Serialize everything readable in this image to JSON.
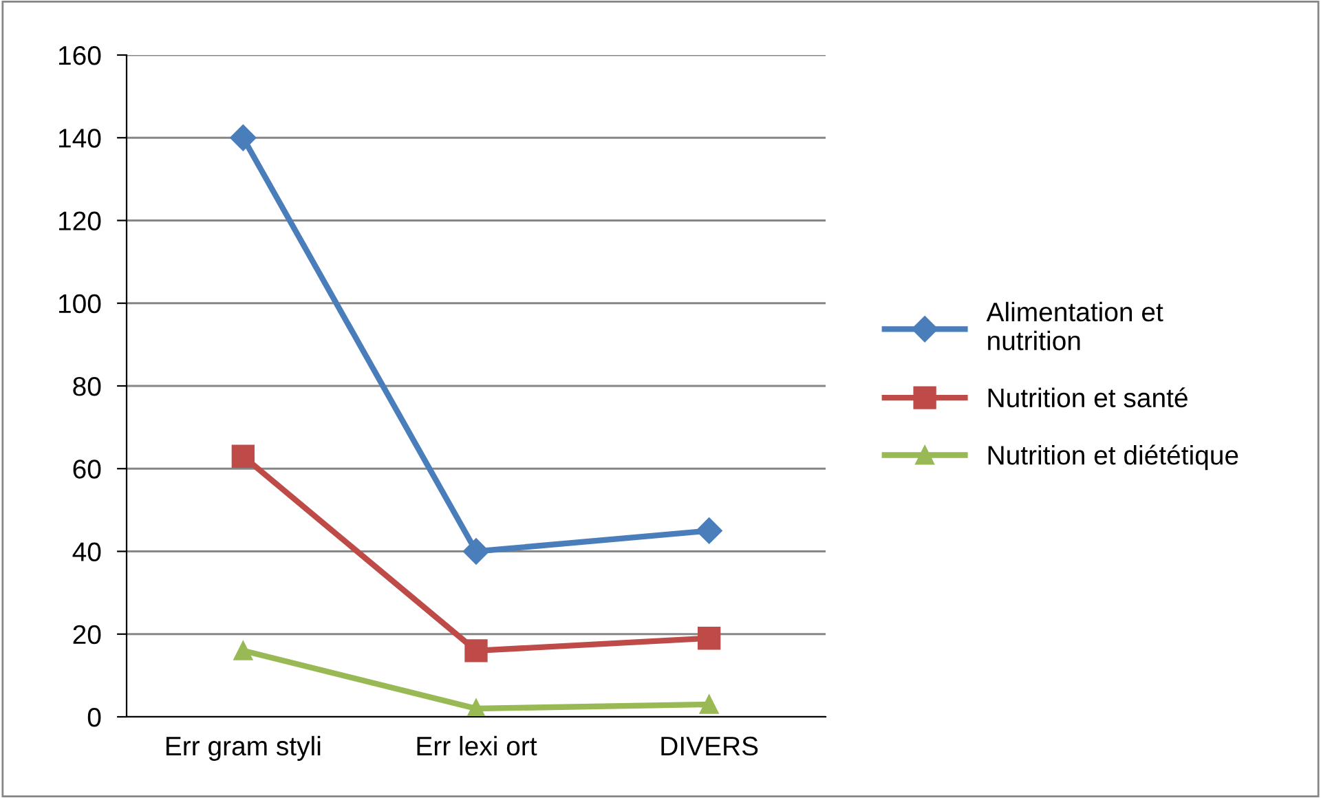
{
  "chart_data": {
    "type": "line",
    "categories": [
      "Err gram styli",
      "Err lexi ort",
      "DIVERS"
    ],
    "series": [
      {
        "name": "Alimentation et\nnutrition",
        "color": "#4a7ebb",
        "values": [
          140,
          40,
          45
        ],
        "marker": "diamond"
      },
      {
        "name": "Nutrition et santé",
        "color": "#be4b48",
        "values": [
          63,
          16,
          19
        ],
        "marker": "square"
      },
      {
        "name": "Nutrition et diététique",
        "color": "#98b954",
        "values": [
          16,
          2,
          3
        ],
        "marker": "triangle"
      }
    ],
    "ylim": [
      0,
      160
    ],
    "yticks": [
      0,
      20,
      40,
      60,
      80,
      100,
      120,
      140,
      160
    ],
    "grid": "y",
    "legend": "right",
    "line_style": "solid"
  }
}
